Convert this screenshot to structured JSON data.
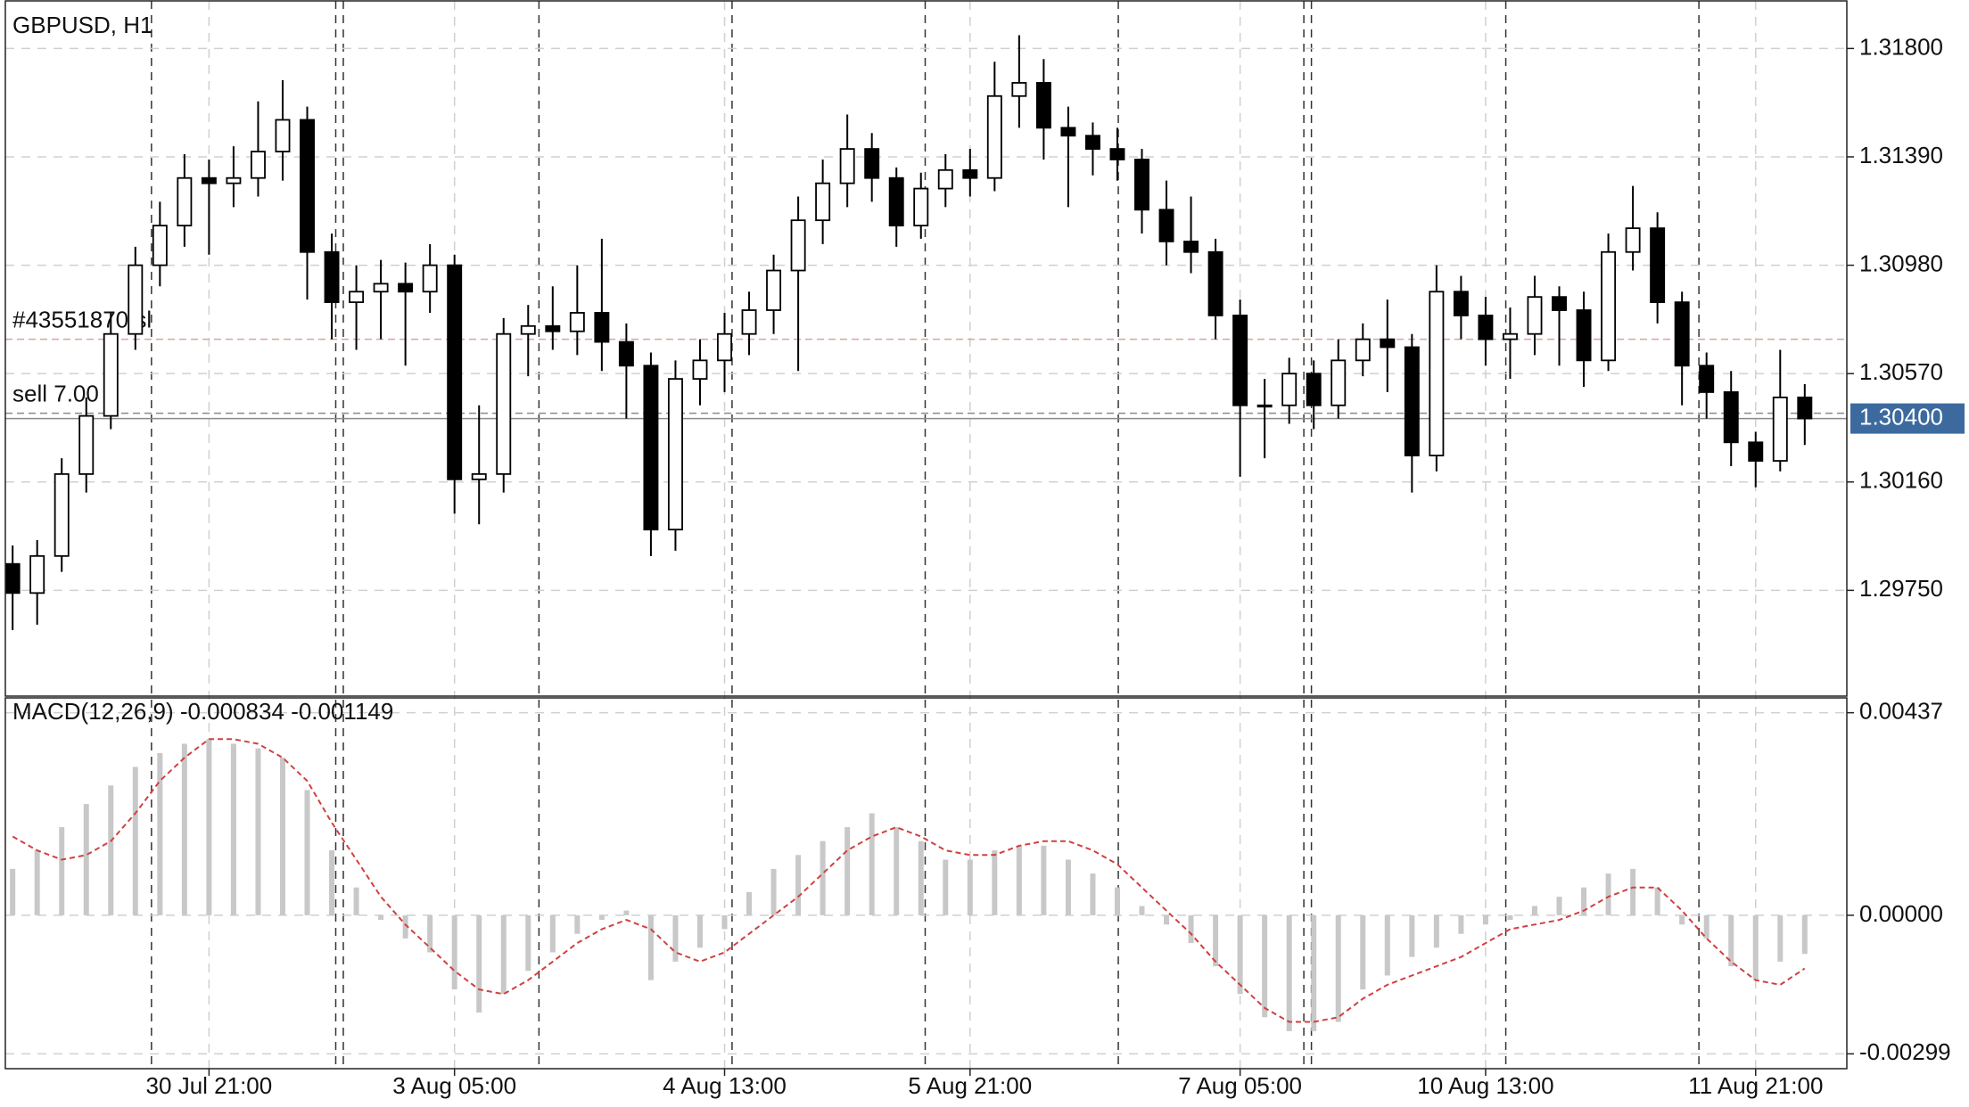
{
  "chart_data": [
    {
      "type": "candlestick",
      "title": "GBPUSD, H1",
      "categories": [
        null,
        null,
        null,
        null,
        null,
        null,
        null,
        null,
        "30 Jul 21:00",
        null,
        null,
        null,
        null,
        null,
        null,
        null,
        null,
        null,
        "3 Aug 05:00",
        null,
        null,
        null,
        null,
        null,
        null,
        null,
        null,
        null,
        null,
        "4 Aug 13:00",
        null,
        null,
        null,
        null,
        null,
        null,
        null,
        null,
        null,
        "5 Aug 21:00",
        null,
        null,
        null,
        null,
        null,
        null,
        null,
        null,
        null,
        null,
        "7 Aug 05:00",
        null,
        null,
        null,
        null,
        null,
        null,
        null,
        null,
        null,
        "10 Aug 13:00",
        null,
        null,
        null,
        null,
        null,
        null,
        null,
        null,
        null,
        null,
        "11 Aug 21:00",
        null,
        null
      ],
      "open": [
        1.2985,
        1.2974,
        1.2988,
        1.3019,
        1.3041,
        1.3072,
        1.3098,
        1.3113,
        1.3131,
        1.3129,
        1.3131,
        1.3141,
        1.3153,
        1.3103,
        1.3084,
        1.3088,
        1.3091,
        1.3088,
        1.3098,
        1.3017,
        1.3019,
        1.3072,
        1.3075,
        1.3073,
        1.308,
        1.3069,
        1.306,
        1.2998,
        1.3055,
        1.3062,
        1.3072,
        1.3081,
        1.3096,
        1.3115,
        1.3129,
        1.3142,
        1.3131,
        1.3113,
        1.3127,
        1.3134,
        1.3131,
        1.3162,
        1.3167,
        1.315,
        1.3147,
        1.3142,
        1.3138,
        1.3119,
        1.3107,
        1.3103,
        1.3079,
        1.3045,
        1.3045,
        1.3057,
        1.3045,
        1.3062,
        1.307,
        1.3067,
        1.3026,
        1.3088,
        1.3079,
        1.307,
        1.3072,
        1.3086,
        1.3081,
        1.3062,
        1.3103,
        1.3112,
        1.3084,
        1.306,
        1.305,
        1.3031,
        1.3024,
        1.3048
      ],
      "high": [
        1.2992,
        1.2994,
        1.3025,
        1.3048,
        1.308,
        1.3105,
        1.3122,
        1.314,
        1.3138,
        1.3143,
        1.316,
        1.3168,
        1.3158,
        1.311,
        1.3098,
        1.31,
        1.3099,
        1.3106,
        1.3102,
        1.3045,
        1.3078,
        1.3083,
        1.309,
        1.3098,
        1.3108,
        1.3076,
        1.3065,
        1.3062,
        1.307,
        1.308,
        1.3088,
        1.3102,
        1.3124,
        1.3138,
        1.3155,
        1.3148,
        1.3135,
        1.3133,
        1.314,
        1.3142,
        1.3175,
        1.3185,
        1.3176,
        1.3158,
        1.3152,
        1.315,
        1.3142,
        1.313,
        1.3124,
        1.3108,
        1.3085,
        1.3055,
        1.3063,
        1.3062,
        1.307,
        1.3076,
        1.3085,
        1.3072,
        1.3098,
        1.3094,
        1.3086,
        1.3082,
        1.3094,
        1.309,
        1.3088,
        1.311,
        1.3128,
        1.3118,
        1.3088,
        1.3065,
        1.3058,
        1.3035,
        1.3066,
        1.3053
      ],
      "low": [
        1.296,
        1.2962,
        1.2982,
        1.3012,
        1.3036,
        1.3066,
        1.309,
        1.3105,
        1.3102,
        1.312,
        1.3124,
        1.313,
        1.3085,
        1.307,
        1.3066,
        1.307,
        1.306,
        1.308,
        1.3004,
        1.3,
        1.3012,
        1.3056,
        1.3066,
        1.3064,
        1.3058,
        1.304,
        1.2988,
        1.299,
        1.3045,
        1.305,
        1.3064,
        1.3072,
        1.3058,
        1.3106,
        1.312,
        1.3122,
        1.3105,
        1.3108,
        1.312,
        1.3124,
        1.3126,
        1.315,
        1.3138,
        1.312,
        1.3132,
        1.313,
        1.311,
        1.3098,
        1.3095,
        1.307,
        1.3018,
        1.3025,
        1.3038,
        1.3036,
        1.304,
        1.3056,
        1.305,
        1.3012,
        1.302,
        1.307,
        1.306,
        1.3055,
        1.3064,
        1.306,
        1.3052,
        1.3058,
        1.3096,
        1.3076,
        1.3045,
        1.304,
        1.3022,
        1.3014,
        1.302,
        1.303
      ],
      "close": [
        1.2974,
        1.2988,
        1.3019,
        1.3041,
        1.3072,
        1.3098,
        1.3113,
        1.3131,
        1.3129,
        1.3131,
        1.3141,
        1.3153,
        1.3103,
        1.3084,
        1.3088,
        1.3091,
        1.3088,
        1.3098,
        1.3017,
        1.3019,
        1.3072,
        1.3075,
        1.3073,
        1.308,
        1.3069,
        1.306,
        1.2998,
        1.3055,
        1.3062,
        1.3072,
        1.3081,
        1.3096,
        1.3115,
        1.3129,
        1.3142,
        1.3131,
        1.3113,
        1.3127,
        1.3134,
        1.3131,
        1.3162,
        1.3167,
        1.315,
        1.3147,
        1.3142,
        1.3138,
        1.3119,
        1.3107,
        1.3103,
        1.3079,
        1.3045,
        1.3045,
        1.3057,
        1.3045,
        1.3062,
        1.307,
        1.3067,
        1.3026,
        1.3088,
        1.3079,
        1.307,
        1.3072,
        1.3086,
        1.3081,
        1.3062,
        1.3103,
        1.3112,
        1.3084,
        1.306,
        1.305,
        1.3031,
        1.3024,
        1.3048,
        1.304
      ],
      "ylim": [
        1.2935,
        1.3198
      ],
      "yticks": [
        {
          "value": 1.318,
          "label": "1.31800"
        },
        {
          "value": 1.3139,
          "label": "1.31390"
        },
        {
          "value": 1.3098,
          "label": "1.30980"
        },
        {
          "value": 1.3057,
          "label": "1.30570"
        },
        {
          "value": 1.3016,
          "label": "1.30160"
        },
        {
          "value": 1.2975,
          "label": "1.29750"
        }
      ],
      "orders": [
        {
          "label": "#43551870 sl",
          "level": 1.307,
          "color": "#d8a4a0"
        },
        {
          "label": "sell 7.00",
          "level": 1.3042,
          "color": "#8a8a8a"
        }
      ],
      "last": {
        "value": 1.304,
        "label": "1.30400"
      },
      "grid": true
    },
    {
      "type": "macd",
      "title": "MACD(12,26,9) -0.000834 -0.001149",
      "series": [
        {
          "type": "bar",
          "color": "#c8c8c8",
          "values": [
            0.001,
            0.0014,
            0.0019,
            0.0024,
            0.0028,
            0.0032,
            0.0035,
            0.0037,
            0.0038,
            0.0037,
            0.0036,
            0.0034,
            0.0027,
            0.0014,
            0.0006,
            -0.0001,
            -0.0005,
            -0.0008,
            -0.0016,
            -0.0021,
            -0.0017,
            -0.0012,
            -0.0008,
            -0.0004,
            -0.0001,
            0.0001,
            -0.0014,
            -0.001,
            -0.0007,
            -0.0003,
            0.0005,
            0.001,
            0.0013,
            0.0016,
            0.0019,
            0.0022,
            0.0019,
            0.0016,
            0.0012,
            0.0012,
            0.0014,
            0.0015,
            0.0015,
            0.0012,
            0.0009,
            0.0006,
            0.0002,
            -0.0002,
            -0.0006,
            -0.0011,
            -0.0017,
            -0.0022,
            -0.0025,
            -0.0025,
            -0.0023,
            -0.0016,
            -0.0013,
            -0.0009,
            -0.0007,
            -0.0004,
            -0.0002,
            -0.0001,
            0.0002,
            0.0004,
            0.0006,
            0.0009,
            0.001,
            0.0006,
            -0.0002,
            -0.0005,
            -0.0011,
            -0.0014,
            -0.001,
            -0.000834
          ]
        },
        {
          "type": "line",
          "color": "#d04040",
          "values": [
            0.0017,
            0.0014,
            0.0012,
            0.0013,
            0.0016,
            0.0022,
            0.0029,
            0.0034,
            0.0038,
            0.0038,
            0.0037,
            0.0034,
            0.0029,
            0.002,
            0.0012,
            0.0004,
            -0.0002,
            -0.0007,
            -0.0012,
            -0.0016,
            -0.0017,
            -0.0014,
            -0.001,
            -0.0006,
            -0.0003,
            -0.0001,
            -0.0003,
            -0.0008,
            -0.001,
            -0.0008,
            -0.0004,
            0.0,
            0.0004,
            0.0009,
            0.0014,
            0.0017,
            0.0019,
            0.0017,
            0.0014,
            0.0013,
            0.0013,
            0.0015,
            0.0016,
            0.0016,
            0.0014,
            0.0011,
            0.0006,
            0.0001,
            -0.0004,
            -0.001,
            -0.0015,
            -0.002,
            -0.0023,
            -0.0023,
            -0.0022,
            -0.0018,
            -0.0015,
            -0.0013,
            -0.0011,
            -0.0009,
            -0.0006,
            -0.0003,
            -0.0002,
            -0.0001,
            0.0001,
            0.0004,
            0.0006,
            0.0006,
            0.0001,
            -0.0005,
            -0.001,
            -0.0014,
            -0.0015,
            -0.001149
          ]
        }
      ],
      "ylim": [
        -0.00331,
        0.00469
      ],
      "yticks": [
        {
          "value": 0.00437,
          "label": "0.00437"
        },
        {
          "value": 0,
          "label": "0.00000"
        },
        {
          "value": -0.00299,
          "label": "-0.00299"
        }
      ],
      "grid": true
    }
  ]
}
